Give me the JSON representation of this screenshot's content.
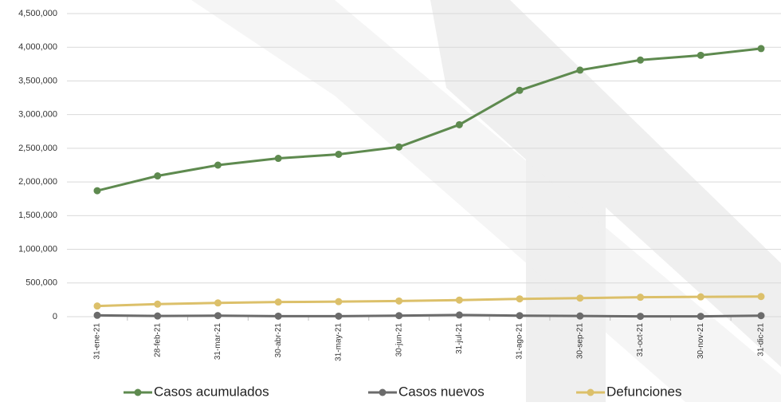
{
  "chart_data": {
    "type": "line",
    "categories": [
      "31-ene-21",
      "28-feb-21",
      "31-mar-21",
      "30-abr-21",
      "31-may-21",
      "30-jun-21",
      "31-jul-21",
      "31-ago-21",
      "30-sep-21",
      "31-oct-21",
      "30-nov-21",
      "31-dic-21"
    ],
    "series": [
      {
        "name": "Casos acumulados",
        "color": "#5e8a4f",
        "values": [
          1870000,
          2090000,
          2250000,
          2350000,
          2410000,
          2520000,
          2850000,
          3360000,
          3660000,
          3810000,
          3880000,
          3980000
        ]
      },
      {
        "name": "Casos nuevos",
        "color": "#6b6b6b",
        "values": [
          20000,
          10000,
          15000,
          8000,
          8000,
          15000,
          25000,
          15000,
          10000,
          5000,
          5000,
          15000
        ]
      },
      {
        "name": "Defunciones",
        "color": "#dcc06a",
        "values": [
          158000,
          186000,
          204000,
          217000,
          223000,
          233000,
          246000,
          264000,
          276000,
          288000,
          294000,
          299000
        ]
      }
    ],
    "ylim": [
      0,
      4500000
    ],
    "yticks": [
      0,
      {
        "value": 500000,
        "label": "500,000"
      },
      {
        "value": 1000000,
        "label": "1,000,000"
      },
      {
        "value": 1500000,
        "label": "1,500,000"
      },
      {
        "value": 2000000,
        "label": "2,000,000"
      },
      {
        "value": 2500000,
        "label": "2,500,000"
      },
      {
        "value": 3000000,
        "label": "3,000,000"
      },
      {
        "value": 3500000,
        "label": "3,500,000"
      },
      {
        "value": 4000000,
        "label": "4,000,000"
      },
      {
        "value": 4500000,
        "label": "4,500,000"
      }
    ],
    "grid": true,
    "legend": "bottom"
  }
}
